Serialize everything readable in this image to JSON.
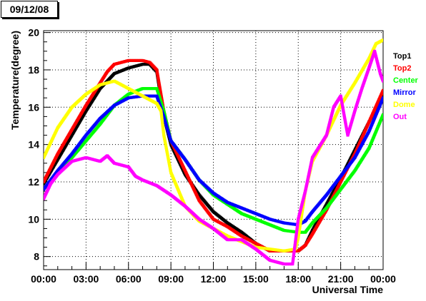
{
  "header": {
    "date": "09/12/08"
  },
  "chart_data": {
    "type": "scatter",
    "xlabel": "Universal Time",
    "ylabel": "Temperature(degree)",
    "x_unit": "hours",
    "xlim": [
      0,
      24
    ],
    "ylim": [
      7.3,
      20.1
    ],
    "xtick_labels": [
      "00:00",
      "03:00",
      "06:00",
      "09:00",
      "12:00",
      "15:00",
      "18:00",
      "21:00",
      "00:00"
    ],
    "ytick_labels": [
      "8",
      "10",
      "12",
      "14",
      "16",
      "18",
      "20"
    ],
    "grid": true,
    "legend_position": "right",
    "series": [
      {
        "name": "Top1",
        "color": "#000000",
        "points": [
          [
            0,
            11.9
          ],
          [
            1,
            13.2
          ],
          [
            2,
            14.5
          ],
          [
            3,
            15.8
          ],
          [
            4,
            17.0
          ],
          [
            5,
            17.8
          ],
          [
            6,
            18.1
          ],
          [
            7,
            18.3
          ],
          [
            7.5,
            18.3
          ],
          [
            8,
            17.9
          ],
          [
            8.5,
            15.5
          ],
          [
            9,
            14.0
          ],
          [
            10,
            12.4
          ],
          [
            11,
            11.3
          ],
          [
            12,
            10.4
          ],
          [
            13,
            9.8
          ],
          [
            14,
            9.3
          ],
          [
            15,
            8.7
          ],
          [
            16,
            8.3
          ],
          [
            17,
            8.3
          ],
          [
            18,
            8.3
          ],
          [
            18.5,
            8.6
          ],
          [
            19,
            9.4
          ],
          [
            20,
            10.8
          ],
          [
            21,
            12.2
          ],
          [
            22,
            13.7
          ],
          [
            23,
            15.2
          ],
          [
            24,
            16.7
          ]
        ]
      },
      {
        "name": "Top2",
        "color": "#ff0000",
        "points": [
          [
            0,
            12.0
          ],
          [
            1,
            13.5
          ],
          [
            2,
            14.8
          ],
          [
            3,
            16.1
          ],
          [
            4,
            17.3
          ],
          [
            4.5,
            17.9
          ],
          [
            5,
            18.3
          ],
          [
            6,
            18.5
          ],
          [
            7,
            18.5
          ],
          [
            7.5,
            18.4
          ],
          [
            8,
            18.0
          ],
          [
            8.5,
            15.8
          ],
          [
            9,
            14.2
          ],
          [
            10,
            12.6
          ],
          [
            11,
            11.0
          ],
          [
            12,
            10.0
          ],
          [
            13,
            9.6
          ],
          [
            14,
            9.1
          ],
          [
            15,
            8.7
          ],
          [
            16,
            8.3
          ],
          [
            17,
            8.3
          ],
          [
            18,
            8.3
          ],
          [
            18.5,
            8.6
          ],
          [
            19,
            9.2
          ],
          [
            20,
            10.5
          ],
          [
            21,
            12.0
          ],
          [
            22,
            13.5
          ],
          [
            23,
            15.2
          ],
          [
            24,
            16.9
          ]
        ]
      },
      {
        "name": "Center",
        "color": "#00ff00",
        "points": [
          [
            0,
            11.6
          ],
          [
            1,
            12.5
          ],
          [
            2,
            13.3
          ],
          [
            3,
            14.2
          ],
          [
            4,
            15.1
          ],
          [
            5,
            16.1
          ],
          [
            6,
            16.7
          ],
          [
            7,
            17.0
          ],
          [
            8,
            17.0
          ],
          [
            8.5,
            15.8
          ],
          [
            9,
            14.2
          ],
          [
            10,
            13.2
          ],
          [
            11,
            12.1
          ],
          [
            12,
            11.3
          ],
          [
            13,
            10.8
          ],
          [
            14,
            10.3
          ],
          [
            15,
            10.0
          ],
          [
            16,
            9.7
          ],
          [
            17,
            9.4
          ],
          [
            18,
            9.3
          ],
          [
            18.5,
            9.3
          ],
          [
            19,
            9.8
          ],
          [
            20,
            10.6
          ],
          [
            21,
            11.6
          ],
          [
            22,
            12.6
          ],
          [
            23,
            13.8
          ],
          [
            24,
            15.6
          ]
        ]
      },
      {
        "name": "Mirror",
        "color": "#0000ff",
        "points": [
          [
            0,
            11.6
          ],
          [
            1,
            12.6
          ],
          [
            2,
            13.5
          ],
          [
            3,
            14.5
          ],
          [
            4,
            15.4
          ],
          [
            5,
            16.1
          ],
          [
            6,
            16.5
          ],
          [
            7,
            16.6
          ],
          [
            8,
            16.6
          ],
          [
            8.5,
            15.5
          ],
          [
            9,
            14.2
          ],
          [
            10,
            13.2
          ],
          [
            11,
            12.1
          ],
          [
            12,
            11.4
          ],
          [
            13,
            10.9
          ],
          [
            14,
            10.6
          ],
          [
            15,
            10.3
          ],
          [
            16,
            10.0
          ],
          [
            17,
            9.8
          ],
          [
            18,
            9.7
          ],
          [
            18.5,
            9.9
          ],
          [
            19,
            10.4
          ],
          [
            20,
            11.3
          ],
          [
            21,
            12.3
          ],
          [
            22,
            13.3
          ],
          [
            23,
            14.7
          ],
          [
            24,
            16.5
          ]
        ]
      },
      {
        "name": "Dome",
        "color": "#ffff00",
        "points": [
          [
            0,
            13.3
          ],
          [
            1,
            14.9
          ],
          [
            2,
            16.0
          ],
          [
            3,
            16.7
          ],
          [
            4,
            17.2
          ],
          [
            5,
            17.4
          ],
          [
            6,
            17.0
          ],
          [
            7,
            16.6
          ],
          [
            8,
            16.2
          ],
          [
            8.3,
            15.8
          ],
          [
            8.5,
            14.5
          ],
          [
            9,
            12.5
          ],
          [
            10,
            10.7
          ],
          [
            11,
            9.9
          ],
          [
            12,
            9.5
          ],
          [
            13,
            9.1
          ],
          [
            14,
            8.8
          ],
          [
            15,
            8.5
          ],
          [
            16,
            8.4
          ],
          [
            17,
            8.3
          ],
          [
            17.8,
            8.4
          ],
          [
            18,
            9.0
          ],
          [
            18.5,
            11.5
          ],
          [
            19,
            13.1
          ],
          [
            20,
            14.5
          ],
          [
            21,
            16.1
          ],
          [
            22,
            17.3
          ],
          [
            23,
            18.6
          ],
          [
            23.5,
            19.4
          ],
          [
            24,
            19.6
          ]
        ]
      },
      {
        "name": "Out",
        "color": "#ff00ff",
        "points": [
          [
            0,
            11.1
          ],
          [
            0.5,
            11.9
          ],
          [
            1,
            12.4
          ],
          [
            2,
            13.1
          ],
          [
            3,
            13.3
          ],
          [
            4,
            13.1
          ],
          [
            4.5,
            13.4
          ],
          [
            5,
            13.0
          ],
          [
            6,
            12.8
          ],
          [
            6.5,
            12.3
          ],
          [
            7,
            12.1
          ],
          [
            8,
            11.8
          ],
          [
            9,
            11.3
          ],
          [
            10,
            10.7
          ],
          [
            11,
            10.0
          ],
          [
            12,
            9.5
          ],
          [
            13,
            8.9
          ],
          [
            14,
            8.9
          ],
          [
            15,
            8.4
          ],
          [
            16,
            7.8
          ],
          [
            17,
            7.6
          ],
          [
            17.6,
            7.6
          ],
          [
            18,
            10.0
          ],
          [
            18.5,
            11.5
          ],
          [
            19,
            13.3
          ],
          [
            20,
            14.5
          ],
          [
            20.5,
            16.0
          ],
          [
            21,
            16.6
          ],
          [
            21.5,
            14.5
          ],
          [
            22,
            15.8
          ],
          [
            22.5,
            17.0
          ],
          [
            23,
            18.1
          ],
          [
            23.4,
            19.0
          ],
          [
            23.8,
            17.8
          ],
          [
            24,
            17.4
          ]
        ]
      }
    ]
  }
}
